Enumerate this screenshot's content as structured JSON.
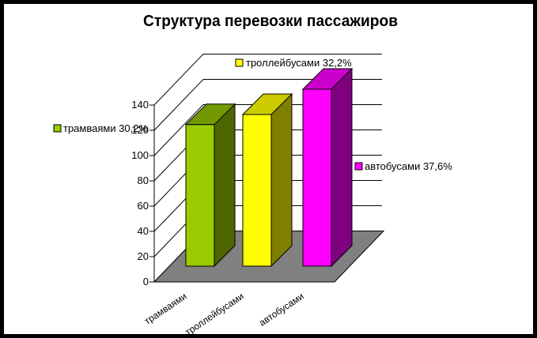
{
  "title": "Структура перевозки пассажиров",
  "chart_data": {
    "type": "bar",
    "projection": "3d-column",
    "title": "Структура перевозки пассажиров",
    "categories": [
      "трамваями",
      "троллейбусами",
      "автобусами"
    ],
    "values": [
      112,
      120,
      140
    ],
    "percentages": [
      30.2,
      32.2,
      37.6
    ],
    "data_labels": [
      "трамваями 30,2%",
      "троллейбусами 32,2%",
      "автобусами 37,6%"
    ],
    "yticks": [
      0,
      20,
      40,
      60,
      80,
      100,
      120,
      140
    ],
    "ylim": [
      0,
      140
    ],
    "grid": true,
    "legend_position": "none",
    "slugs": [
      "trams",
      "trolleybuses",
      "buses"
    ],
    "colors": {
      "bar_front": [
        "#99CC00",
        "#FFFF00",
        "#FF00FF"
      ],
      "bar_top": [
        "#739900",
        "#CCCC00",
        "#CC00CC"
      ],
      "bar_side": [
        "#4D6600",
        "#808000",
        "#800080"
      ],
      "floor": "#808080",
      "line": "#000000",
      "background": "#FFFFFF",
      "text": "#000000",
      "frame_border": "#000000"
    }
  }
}
